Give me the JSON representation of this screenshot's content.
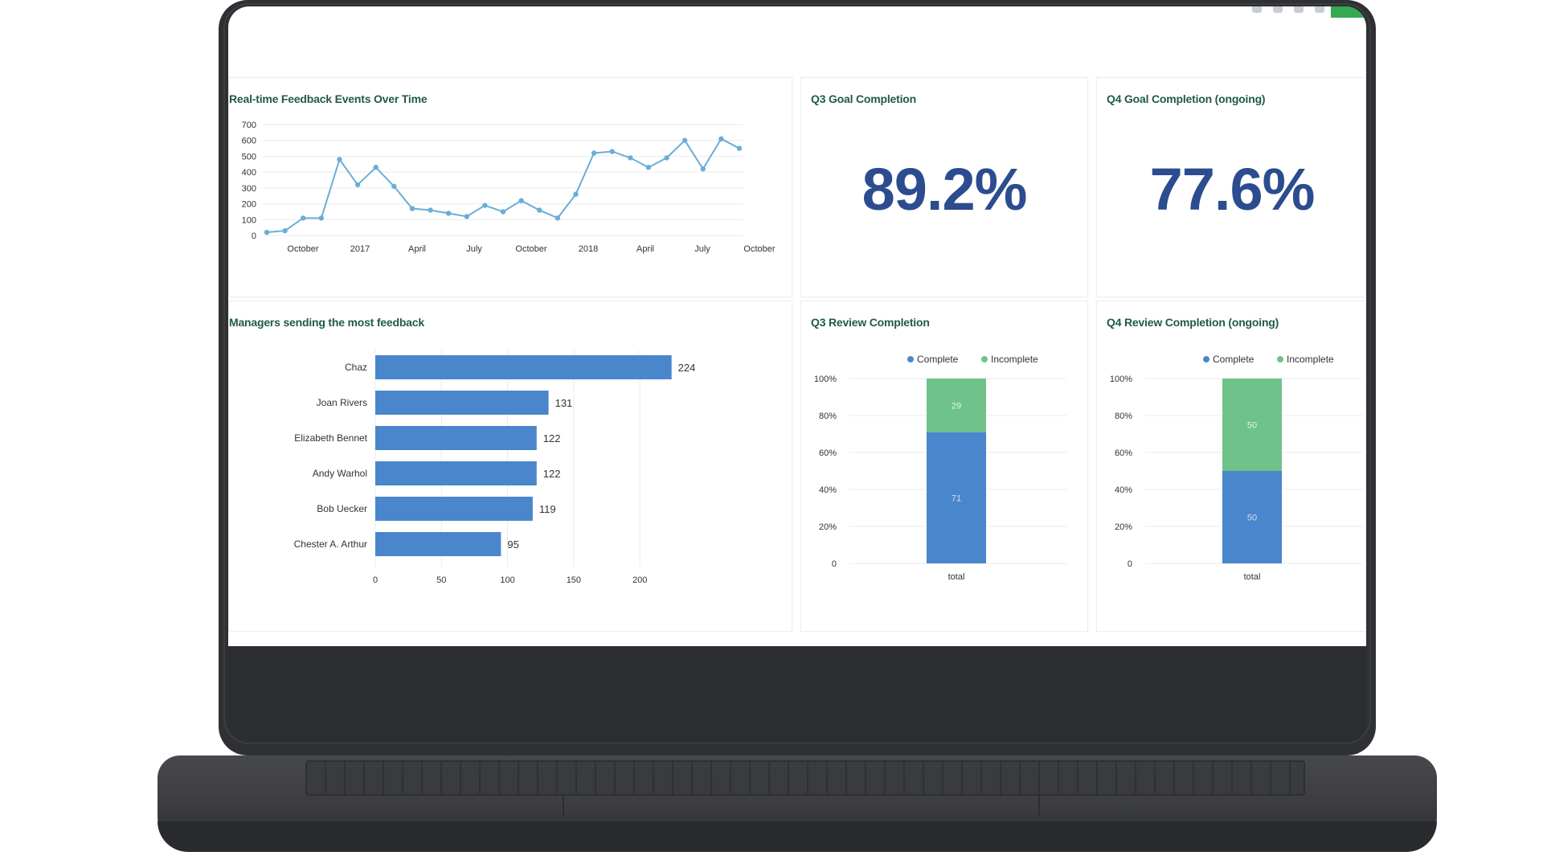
{
  "header": {
    "icons": [
      "settings-icon",
      "copy-icon",
      "filter-icon",
      "share-icon"
    ]
  },
  "colors": {
    "line": "#6aaed6",
    "bar": "#4a86cc",
    "complete": "#4a86cc",
    "incomplete": "#6fc28a",
    "accent": "#34a853",
    "number": "#2c4c8f",
    "title": "#1f5a4b"
  },
  "cards": {
    "feedback_events": {
      "title": "Real-time Feedback Events Over Time"
    },
    "q3_goal": {
      "title": "Q3 Goal Completion",
      "value": "89.2%"
    },
    "q4_goal": {
      "title": "Q4 Goal Completion (ongoing)",
      "value": "77.6%"
    },
    "managers": {
      "title": "Managers sending the most feedback"
    },
    "q3_review": {
      "title": "Q3 Review Completion"
    },
    "q4_review": {
      "title": "Q4 Review Completion (ongoing)"
    }
  },
  "chart_data": [
    {
      "type": "line",
      "title": "Real-time Feedback Events Over Time",
      "x_ticks": [
        "October",
        "2017",
        "April",
        "July",
        "October",
        "2018",
        "April",
        "July",
        "October"
      ],
      "y_ticks": [
        "700",
        "600",
        "500",
        "400",
        "300",
        "200",
        "100",
        "0"
      ],
      "ylim": [
        0,
        700
      ],
      "grid": true,
      "values": [
        20,
        30,
        110,
        110,
        480,
        320,
        430,
        310,
        170,
        160,
        140,
        120,
        190,
        150,
        220,
        160,
        110,
        260,
        520,
        530,
        490,
        430,
        490,
        600,
        420,
        610,
        550
      ]
    },
    {
      "type": "bar",
      "orientation": "horizontal",
      "title": "Managers sending the most feedback",
      "categories": [
        "Chaz",
        "Joan Rivers",
        "Elizabeth Bennet",
        "Andy Warhol",
        "Bob Uecker",
        "Chester A. Arthur"
      ],
      "values": [
        224,
        131,
        122,
        122,
        119,
        95
      ],
      "x_ticks": [
        "0",
        "50",
        "100",
        "150",
        "200"
      ],
      "xlim": [
        0,
        240
      ],
      "grid": true
    },
    {
      "type": "bar",
      "stacked": true,
      "title": "Q3 Review Completion",
      "legend": [
        "Complete",
        "Incomplete"
      ],
      "legend_position": "top-right",
      "categories": [
        "total"
      ],
      "series": [
        {
          "name": "Complete",
          "values": [
            71
          ]
        },
        {
          "name": "Incomplete",
          "values": [
            29
          ]
        }
      ],
      "y_ticks": [
        "100%",
        "80%",
        "60%",
        "40%",
        "20%",
        "0"
      ],
      "ylim": [
        0,
        100
      ]
    },
    {
      "type": "bar",
      "stacked": true,
      "title": "Q4 Review Completion (ongoing)",
      "legend": [
        "Complete",
        "Incomplete"
      ],
      "legend_position": "top-right",
      "categories": [
        "total"
      ],
      "series": [
        {
          "name": "Complete",
          "values": [
            50
          ]
        },
        {
          "name": "Incomplete",
          "values": [
            50
          ]
        }
      ],
      "y_ticks": [
        "100%",
        "80%",
        "60%",
        "40%",
        "20%",
        "0"
      ],
      "ylim": [
        0,
        100
      ]
    }
  ]
}
